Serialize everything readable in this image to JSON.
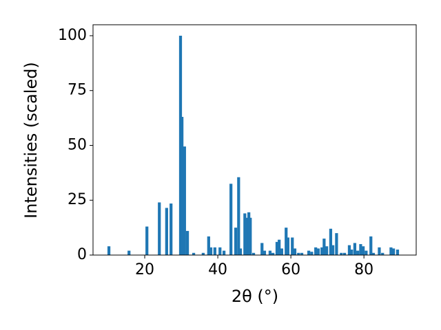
{
  "chart_data": {
    "type": "bar",
    "xlabel": "2θ (°)",
    "ylabel": "Intensities (scaled)",
    "color": "#1f77b4",
    "xlim": [
      5.85,
      94.3
    ],
    "xticks": [
      20,
      40,
      60,
      80
    ],
    "ylim": [
      0,
      105
    ],
    "yticks": [
      0,
      25,
      50,
      75,
      100
    ],
    "x": [
      10.2,
      15.7,
      20.6,
      24.0,
      26.0,
      27.2,
      29.8,
      30.2,
      30.9,
      31.7,
      33.4,
      36.0,
      37.5,
      38.1,
      39.2,
      40.6,
      41.7,
      43.6,
      44.9,
      45.7,
      46.2,
      47.4,
      47.9,
      48.5,
      48.9,
      49.8,
      52.1,
      52.8,
      54.3,
      55.1,
      56.2,
      56.8,
      57.5,
      58.7,
      59.2,
      60.4,
      61.1,
      62.1,
      63.0,
      64.9,
      65.7,
      66.8,
      67.5,
      68.5,
      69.1,
      69.8,
      70.9,
      71.5,
      72.5,
      73.8,
      74.7,
      76.0,
      76.6,
      77.5,
      78.3,
      79.1,
      79.8,
      80.6,
      81.9,
      82.6,
      84.2,
      85.1,
      87.4,
      88.1,
      89.2
    ],
    "values": [
      4,
      2,
      13,
      24,
      21.5,
      23.5,
      100,
      63,
      49.5,
      11,
      1,
      1,
      8.5,
      3.5,
      3.5,
      3.5,
      2,
      32.5,
      12.5,
      35.5,
      3,
      19,
      17,
      19.5,
      17,
      1,
      5.5,
      2,
      2,
      1,
      6,
      7,
      3,
      12.5,
      8,
      8,
      3,
      1,
      1,
      2,
      1.5,
      3.5,
      3,
      3.5,
      7.5,
      4,
      12,
      4.5,
      10,
      1,
      1,
      4.5,
      2.5,
      5.5,
      2,
      5,
      4,
      2,
      8.5,
      1,
      3.5,
      1,
      3.5,
      3,
      2.5
    ]
  }
}
